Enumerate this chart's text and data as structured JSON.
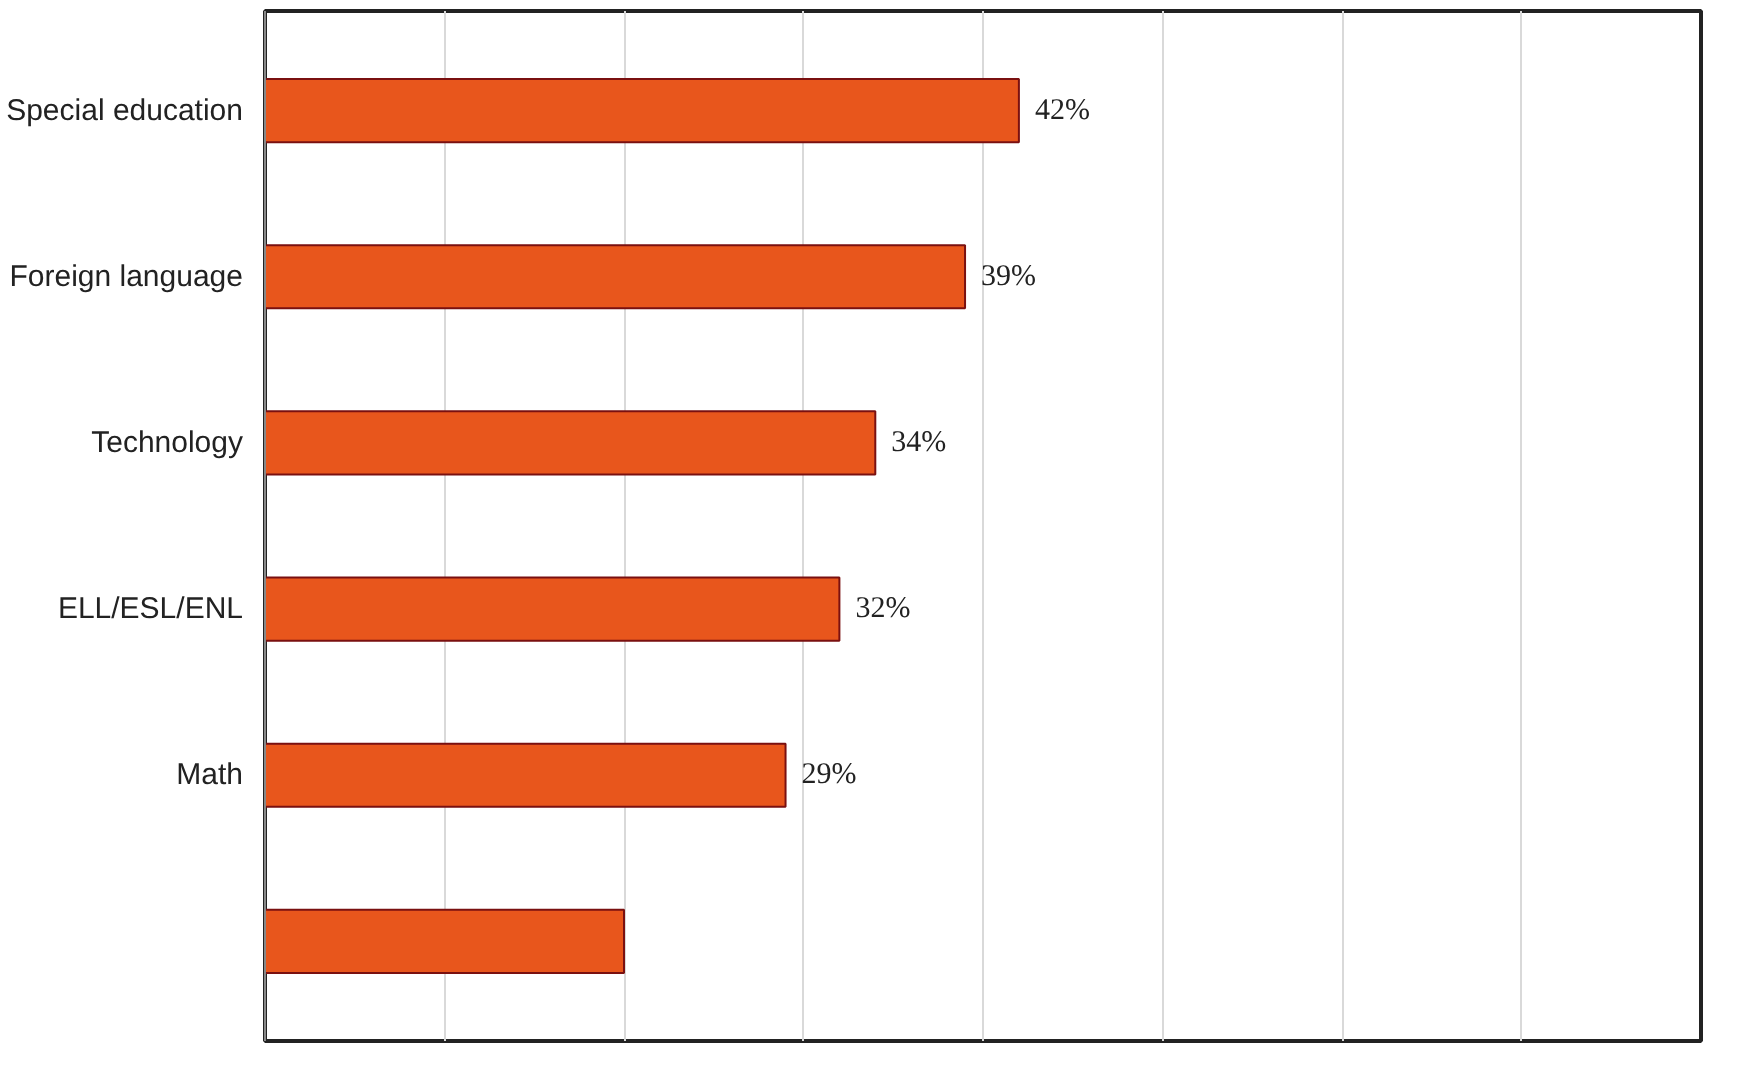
{
  "chart_data": {
    "type": "bar",
    "orientation": "horizontal",
    "categories": [
      "Special education",
      "Foreign language",
      "Technology",
      "ELL/ESL/ENL",
      "Math",
      null
    ],
    "values": [
      42,
      39,
      34,
      32,
      29,
      20
    ],
    "value_labels": [
      "42%",
      "39%",
      "34%",
      "32%",
      "29%",
      null
    ],
    "color": "#e8561c",
    "xlim": [
      0,
      80
    ],
    "xticks": [
      {
        "value": 0,
        "label": null
      },
      {
        "value": 10,
        "label": null
      },
      {
        "value": 20,
        "label": null
      },
      {
        "value": 30,
        "label": null
      },
      {
        "value": 40,
        "label": null
      },
      {
        "value": 50,
        "label": null
      },
      {
        "value": 60,
        "label": null
      },
      {
        "value": 70,
        "label": null
      },
      {
        "value": 80,
        "label": null
      }
    ],
    "grid": "x",
    "tick_labels": "y"
  }
}
